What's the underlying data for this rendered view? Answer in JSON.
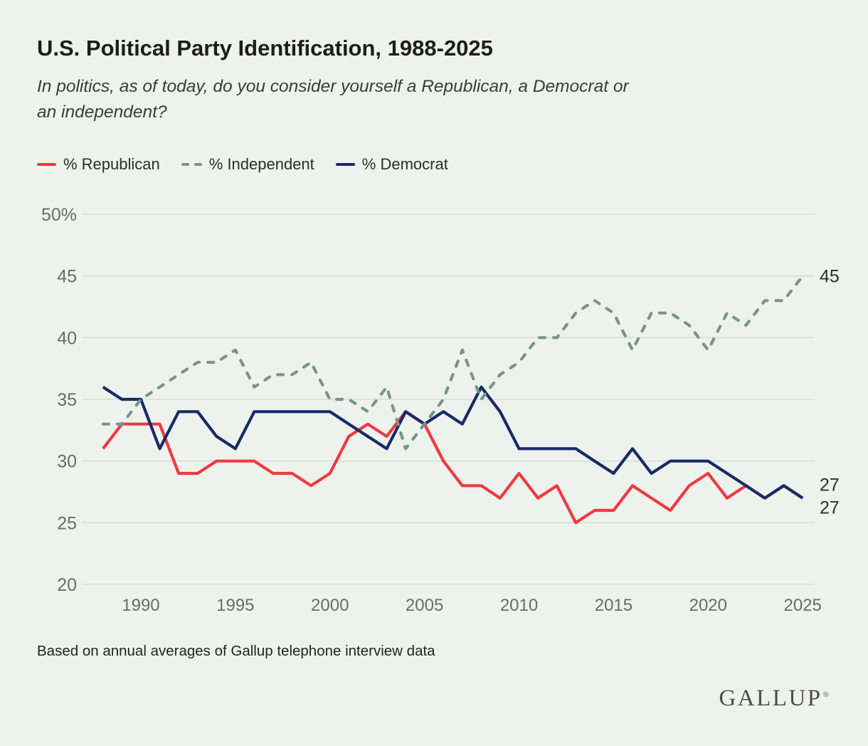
{
  "header": {
    "title": "U.S. Political Party Identification, 1988-2025",
    "subtitle_line1": "In politics, as of today, do you consider yourself a Republican, a Democrat or",
    "subtitle_line2": "an independent?"
  },
  "legend": {
    "republican_label": "% Republican",
    "independent_label": "% Independent",
    "democrat_label": "% Democrat"
  },
  "footnote": "Based on annual averages of Gallup telephone interview data",
  "logo": {
    "text": "GALLUP",
    "mark": "®"
  },
  "colors": {
    "background": "#edf3ec",
    "republican": "#ee3a42",
    "independent": "#78948c",
    "democrat": "#182a68",
    "gridline": "#d8ded6",
    "axis_text": "#6b6b67",
    "end_label_text": "#2f2f2a"
  },
  "chart_data": {
    "type": "line",
    "x": [
      1988,
      1989,
      1990,
      1991,
      1992,
      1993,
      1994,
      1995,
      1996,
      1997,
      1998,
      1999,
      2000,
      2001,
      2002,
      2003,
      2004,
      2005,
      2006,
      2007,
      2008,
      2009,
      2010,
      2011,
      2012,
      2013,
      2014,
      2015,
      2016,
      2017,
      2018,
      2019,
      2020,
      2021,
      2022,
      2023,
      2024,
      2025
    ],
    "series": [
      {
        "name": "% Republican",
        "key": "republican",
        "style": "solid",
        "values": [
          31,
          33,
          33,
          33,
          29,
          29,
          30,
          30,
          30,
          29,
          29,
          28,
          29,
          32,
          33,
          32,
          34,
          33,
          30,
          28,
          28,
          27,
          29,
          27,
          28,
          25,
          26,
          26,
          28,
          27,
          26,
          28,
          29,
          27,
          28,
          27,
          28,
          27
        ]
      },
      {
        "name": "% Democrat",
        "key": "democrat",
        "style": "solid",
        "values": [
          36,
          35,
          35,
          31,
          34,
          34,
          32,
          31,
          34,
          34,
          34,
          34,
          34,
          33,
          32,
          31,
          34,
          33,
          34,
          33,
          36,
          34,
          31,
          31,
          31,
          31,
          30,
          29,
          31,
          29,
          30,
          30,
          30,
          29,
          28,
          27,
          28,
          27
        ]
      },
      {
        "name": "% Independent",
        "key": "independent",
        "style": "dashed",
        "values": [
          33,
          33,
          35,
          36,
          37,
          38,
          38,
          39,
          36,
          37,
          37,
          38,
          35,
          35,
          34,
          36,
          31,
          33,
          35,
          39,
          35,
          37,
          38,
          40,
          40,
          42,
          43,
          42,
          39,
          42,
          42,
          41,
          39,
          42,
          41,
          43,
          43,
          45
        ]
      }
    ],
    "title": "U.S. Political Party Identification, 1988-2025",
    "xlabel": "",
    "ylabel": "",
    "ylim": [
      20,
      50
    ],
    "grid": true,
    "legend_position": "top",
    "yticks": [
      {
        "value": 50,
        "label": "50%"
      },
      {
        "value": 45,
        "label": "45"
      },
      {
        "value": 40,
        "label": "40"
      },
      {
        "value": 35,
        "label": "35"
      },
      {
        "value": 30,
        "label": "30"
      },
      {
        "value": 25,
        "label": "25"
      },
      {
        "value": 20,
        "label": "20"
      }
    ],
    "xticks": [
      {
        "value": 1990,
        "label": "1990"
      },
      {
        "value": 1995,
        "label": "1995"
      },
      {
        "value": 2000,
        "label": "2000"
      },
      {
        "value": 2005,
        "label": "2005"
      },
      {
        "value": 2010,
        "label": "2010"
      },
      {
        "value": 2015,
        "label": "2015"
      },
      {
        "value": 2020,
        "label": "2020"
      },
      {
        "value": 2025,
        "label": "2025"
      }
    ],
    "end_labels": [
      {
        "series": "% Independent",
        "text": "45",
        "value": 45
      },
      {
        "series": "% Democrat",
        "text": "27",
        "value": 27
      },
      {
        "series": "% Republican",
        "text": "27",
        "value": 27
      }
    ]
  }
}
